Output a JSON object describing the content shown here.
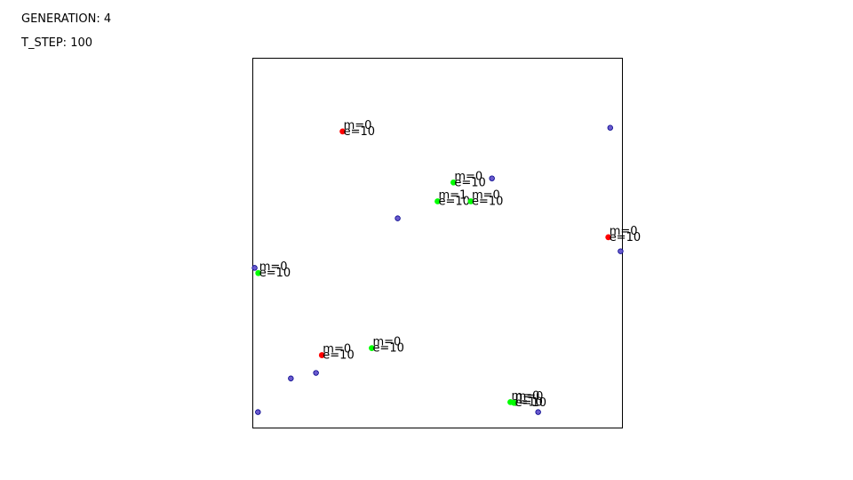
{
  "hud": {
    "generation_label": "GENERATION: 4",
    "step_label": "T_STEP: 100"
  },
  "chart_data": {
    "type": "scatter",
    "title": "",
    "xlabel": "",
    "ylabel": "",
    "xlim": [
      0,
      1
    ],
    "ylim": [
      0,
      1
    ],
    "grid": false,
    "axis_ticks": false,
    "colors": {
      "red_agent": "#ff0000",
      "green_agent": "#00ff00",
      "food": "#6a5acd",
      "food_edge": "#00008b",
      "frame": "#000000"
    },
    "series": [
      {
        "kind": "red_agent",
        "points": [
          {
            "x": 0.243,
            "y": 0.802,
            "m": "m=0",
            "e": "e=10"
          },
          {
            "x": 0.962,
            "y": 0.516,
            "m": "m=0",
            "e": "e=10"
          },
          {
            "x": 0.187,
            "y": 0.197,
            "m": "m=0",
            "e": "e=10"
          }
        ]
      },
      {
        "kind": "green_agent",
        "points": [
          {
            "x": 0.543,
            "y": 0.664,
            "m": "m=0",
            "e": "e=10"
          },
          {
            "x": 0.5,
            "y": 0.613,
            "m": "m=1",
            "e": "e=10"
          },
          {
            "x": 0.59,
            "y": 0.613,
            "m": "m=0",
            "e": "e=10"
          },
          {
            "x": 0.015,
            "y": 0.419,
            "m": "m=0",
            "e": "e=10"
          },
          {
            "x": 0.322,
            "y": 0.216,
            "m": "m=0",
            "e": "e=10"
          },
          {
            "x": 0.697,
            "y": 0.07,
            "m": "m=0",
            "e": "e=10"
          },
          {
            "x": 0.707,
            "y": 0.068,
            "m": "m=0",
            "e": "e=10"
          }
        ]
      },
      {
        "kind": "food",
        "points": [
          {
            "x": 0.967,
            "y": 0.812
          },
          {
            "x": 0.647,
            "y": 0.675
          },
          {
            "x": 0.392,
            "y": 0.567
          },
          {
            "x": 0.995,
            "y": 0.478
          },
          {
            "x": 0.005,
            "y": 0.433
          },
          {
            "x": 0.171,
            "y": 0.149
          },
          {
            "x": 0.103,
            "y": 0.134
          },
          {
            "x": 0.014,
            "y": 0.043
          },
          {
            "x": 0.772,
            "y": 0.043
          }
        ]
      }
    ]
  }
}
